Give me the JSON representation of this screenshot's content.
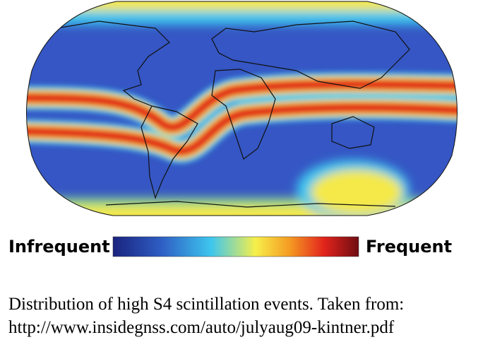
{
  "legend": {
    "low": "Infrequent",
    "high": "Frequent"
  },
  "caption": {
    "line1": "Distribution of high S4 scintillation events. Taken from:",
    "line2": "http://www.insidegnss.com/auto/julyaug09-kintner.pdf"
  }
}
